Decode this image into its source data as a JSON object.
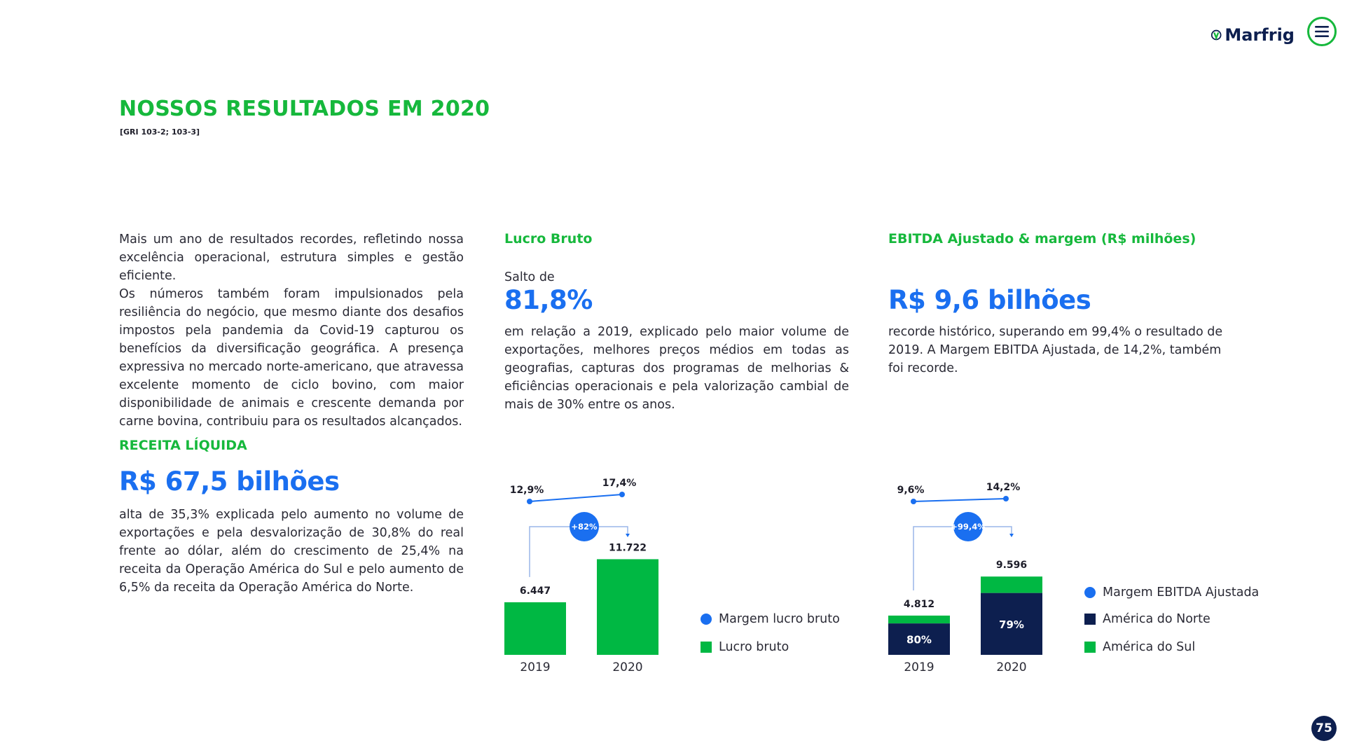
{
  "header": {
    "logo_text": "Marfrig",
    "menu_icon": "hamburger-icon",
    "brand_green": "#16b83c",
    "brand_navy": "#0d1f4f",
    "accent_blue": "#1a6ff0"
  },
  "title": "NOSSOS RESULTADOS EM 2020",
  "gri": "[GRI 103-2; 103-3]",
  "intro": {
    "p1": "Mais um ano de resultados recordes, refletindo nossa excelência operacional, estrutura simples e gestão eficiente.",
    "p2": "Os números também foram impulsionados pela resiliência do negócio, que mesmo diante dos desafios impostos pela pandemia da Covid-19 capturou os benefícios da diversificação geográfica. A presença expressiva no mercado norte-americano, que atravessa excelente momento de ciclo bovino, com maior disponibilidade de animais e crescente demanda por carne bovina, contribuiu para os resultados alcançados."
  },
  "receita": {
    "title": "RECEITA LÍQUIDA",
    "value": "R$ 67,5 bilhões",
    "text": "alta de 35,3% explicada pelo aumento no volume de exportações e pela desvalorização de 30,8% do real frente ao dólar, além do crescimento de 25,4% na receita da Operação América do Sul e pelo aumento de 6,5% da receita da Operação América do Norte."
  },
  "lucro": {
    "title": "Lucro Bruto",
    "pre": "Salto de",
    "value": "81,8%",
    "text": "em relação a 2019, explicado pelo maior volume de exportações, melhores preços médios em todas as geografias, capturas dos programas de melhorias & eficiências operacionais e pela valorização cambial de mais de 30% entre os anos."
  },
  "ebitda": {
    "title": "EBITDA Ajustado & margem (R$ milhões)",
    "value": "R$ 9,6 bilhões",
    "text": "recorde histórico, superando em 99,4% o resultado de 2019. A Margem EBITDA Ajustada, de 14,2%, também foi recorde."
  },
  "chart_data": [
    {
      "type": "bar",
      "categories": [
        "2019",
        "2020"
      ],
      "series": [
        {
          "name": "Lucro bruto",
          "values": [
            6447,
            11722
          ],
          "labels": [
            "6.447",
            "11.722"
          ],
          "color": "#00b843"
        },
        {
          "name": "Margem lucro bruto",
          "values": [
            12.9,
            17.4
          ],
          "labels": [
            "12,9%",
            "17,4%"
          ],
          "color": "#1a6ff0"
        }
      ],
      "growth_label": "+82%"
    },
    {
      "type": "bar",
      "categories": [
        "2019",
        "2020"
      ],
      "series": [
        {
          "name": "América do Norte",
          "share": [
            0.8,
            0.79
          ],
          "labels": [
            "80%",
            "79%"
          ],
          "color": "#0d1f4f"
        },
        {
          "name": "América do Sul",
          "share": [
            0.2,
            0.21
          ],
          "color": "#00b843"
        },
        {
          "name": "Margem EBITDA Ajustada",
          "values": [
            9.6,
            14.2
          ],
          "labels": [
            "9,6%",
            "14,2%"
          ],
          "color": "#1a6ff0"
        }
      ],
      "totals": [
        4812,
        9596
      ],
      "total_labels": [
        "4.812",
        "9.596"
      ],
      "growth_label": "+99,4%"
    }
  ],
  "page_number": "75"
}
